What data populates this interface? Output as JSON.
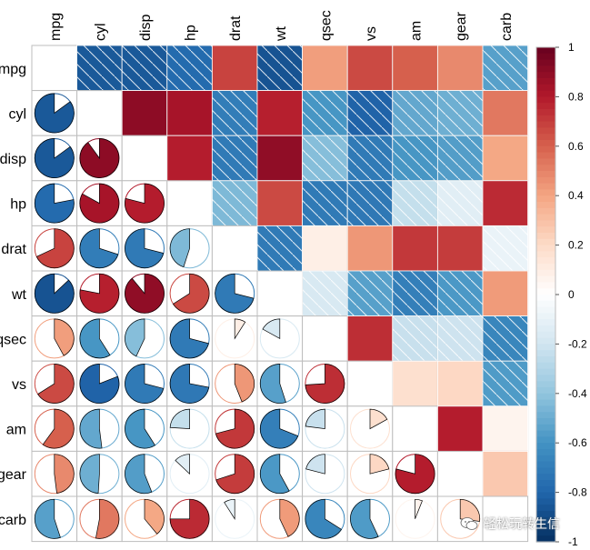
{
  "chart_data": {
    "type": "heatmap",
    "title": "",
    "variables": [
      "mpg",
      "cyl",
      "disp",
      "hp",
      "drat",
      "wt",
      "qsec",
      "vs",
      "am",
      "gear",
      "carb"
    ],
    "correlation_matrix": [
      [
        1.0,
        -0.85,
        -0.85,
        -0.78,
        0.68,
        -0.87,
        0.42,
        0.66,
        0.6,
        0.48,
        -0.55
      ],
      [
        -0.85,
        1.0,
        0.9,
        0.83,
        -0.7,
        0.78,
        -0.59,
        -0.81,
        -0.52,
        -0.49,
        0.53
      ],
      [
        -0.85,
        0.9,
        1.0,
        0.79,
        -0.71,
        0.89,
        -0.43,
        -0.71,
        -0.59,
        -0.56,
        0.39
      ],
      [
        -0.78,
        0.83,
        0.79,
        1.0,
        -0.45,
        0.66,
        -0.71,
        -0.72,
        -0.24,
        -0.13,
        0.75
      ],
      [
        0.68,
        -0.7,
        -0.71,
        -0.45,
        1.0,
        -0.71,
        0.09,
        0.44,
        0.71,
        0.7,
        -0.09
      ],
      [
        -0.87,
        0.78,
        0.89,
        0.66,
        -0.71,
        1.0,
        -0.17,
        -0.55,
        -0.69,
        -0.58,
        0.43
      ],
      [
        0.42,
        -0.59,
        -0.43,
        -0.71,
        0.09,
        -0.17,
        1.0,
        0.74,
        -0.23,
        -0.21,
        -0.66
      ],
      [
        0.66,
        -0.81,
        -0.71,
        -0.72,
        0.44,
        -0.55,
        0.74,
        1.0,
        0.17,
        0.21,
        -0.57
      ],
      [
        0.6,
        -0.52,
        -0.59,
        -0.24,
        0.71,
        -0.69,
        -0.23,
        0.17,
        1.0,
        0.79,
        0.06
      ],
      [
        0.48,
        -0.49,
        -0.56,
        -0.13,
        0.7,
        -0.58,
        -0.21,
        0.21,
        0.79,
        1.0,
        0.27
      ],
      [
        -0.55,
        0.53,
        0.39,
        0.75,
        -0.09,
        0.43,
        -0.66,
        -0.57,
        0.06,
        0.27,
        1.0
      ]
    ],
    "upper_style": "shade",
    "lower_style": "pie",
    "negative_hatch": true,
    "colorbar": {
      "range": [
        -1,
        1
      ],
      "tick_labels": [
        "1",
        "0.8",
        "0.6",
        "0.4",
        "0.2",
        "0",
        "-0.2",
        "-0.4",
        "-0.6",
        "-0.8",
        "-1"
      ],
      "tick_values": [
        1,
        0.8,
        0.6,
        0.4,
        0.2,
        0,
        -0.2,
        -0.4,
        -0.6,
        -0.8,
        -1
      ]
    },
    "color_stops": [
      "#053061",
      "#2166ac",
      "#4393c3",
      "#92c5de",
      "#d1e5f0",
      "#ffffff",
      "#fddbc7",
      "#f4a582",
      "#d6604d",
      "#b2182b",
      "#67001f"
    ]
  },
  "watermark": {
    "text": "轻松玩转生信"
  }
}
